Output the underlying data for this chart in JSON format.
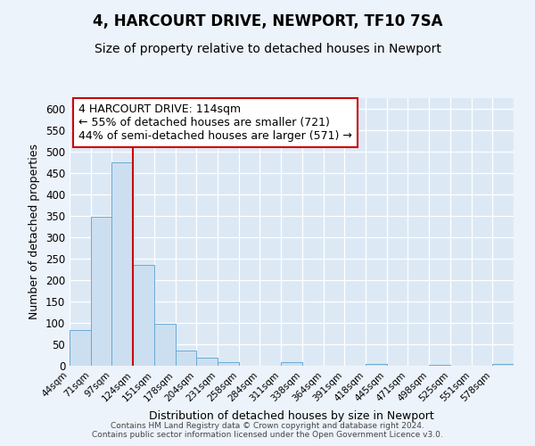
{
  "title": "4, HARCOURT DRIVE, NEWPORT, TF10 7SA",
  "subtitle": "Size of property relative to detached houses in Newport",
  "xlabel": "Distribution of detached houses by size in Newport",
  "ylabel": "Number of detached properties",
  "bar_labels": [
    "44sqm",
    "71sqm",
    "97sqm",
    "124sqm",
    "151sqm",
    "178sqm",
    "204sqm",
    "231sqm",
    "258sqm",
    "284sqm",
    "311sqm",
    "338sqm",
    "364sqm",
    "391sqm",
    "418sqm",
    "445sqm",
    "471sqm",
    "498sqm",
    "525sqm",
    "551sqm",
    "578sqm"
  ],
  "bar_values": [
    83,
    348,
    476,
    235,
    97,
    35,
    18,
    8,
    0,
    0,
    8,
    0,
    0,
    0,
    5,
    0,
    0,
    3,
    0,
    0,
    5
  ],
  "bar_color": "#ccdff0",
  "bar_edge_color": "#6aaad4",
  "vline_color": "#cc0000",
  "annotation_text": "4 HARCOURT DRIVE: 114sqm\n← 55% of detached houses are smaller (721)\n44% of semi-detached houses are larger (571) →",
  "annotation_box_color": "#ffffff",
  "annotation_box_edge": "#cc0000",
  "ylim": [
    0,
    625
  ],
  "yticks": [
    0,
    50,
    100,
    150,
    200,
    250,
    300,
    350,
    400,
    450,
    500,
    550,
    600
  ],
  "bg_color": "#dce9f5",
  "fig_bg_color": "#edf3fa",
  "footer_line1": "Contains HM Land Registry data © Crown copyright and database right 2024.",
  "footer_line2": "Contains public sector information licensed under the Open Government Licence v3.0.",
  "title_fontsize": 12,
  "subtitle_fontsize": 10,
  "annotation_fontsize": 9
}
